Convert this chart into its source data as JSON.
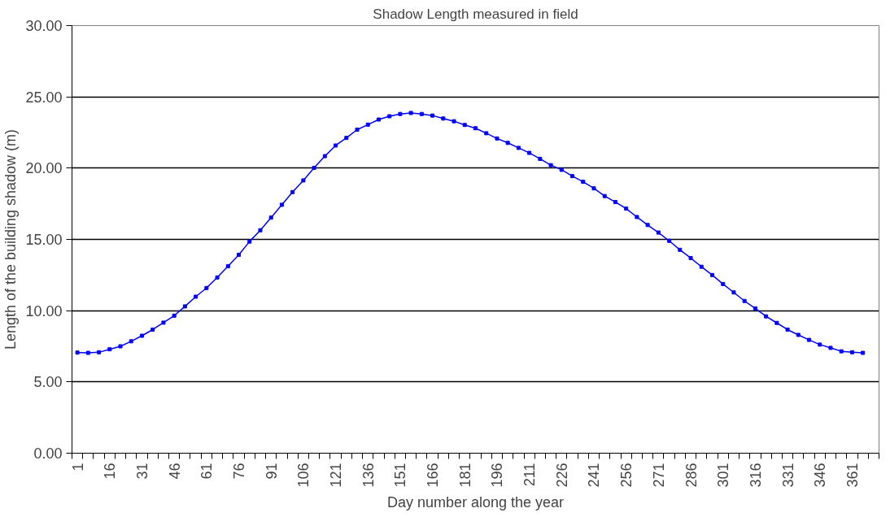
{
  "chart_data": {
    "type": "line",
    "title": "Shadow Length measured in field",
    "xlabel": "Day number along the year",
    "ylabel": "Length of the building shadow (m)",
    "categories": [
      "1",
      null,
      null,
      "16",
      null,
      null,
      "31",
      null,
      null,
      "46",
      null,
      null,
      "61",
      null,
      null,
      "76",
      null,
      null,
      "91",
      null,
      null,
      "106",
      null,
      null,
      "121",
      null,
      null,
      "136",
      null,
      null,
      "151",
      null,
      null,
      "166",
      null,
      null,
      "181",
      null,
      null,
      "196",
      null,
      null,
      "211",
      null,
      null,
      "226",
      null,
      null,
      "241",
      null,
      null,
      "256",
      null,
      null,
      "271",
      null,
      null,
      "286",
      null,
      null,
      "301",
      null,
      null,
      "316",
      null,
      null,
      "331",
      null,
      null,
      "346",
      null,
      null,
      "361",
      null,
      null
    ],
    "series": [
      {
        "color": "#0000ff",
        "values": [
          7.06,
          7.04,
          7.08,
          7.29,
          7.5,
          7.85,
          8.24,
          8.67,
          9.16,
          9.65,
          10.3,
          10.98,
          11.59,
          12.33,
          13.12,
          13.92,
          14.85,
          15.64,
          16.53,
          17.43,
          18.32,
          19.14,
          20.02,
          20.84,
          21.59,
          22.12,
          22.7,
          23.05,
          23.41,
          23.64,
          23.8,
          23.87,
          23.8,
          23.69,
          23.48,
          23.29,
          23.03,
          22.8,
          22.45,
          22.08,
          21.77,
          21.42,
          21.07,
          20.65,
          20.21,
          19.88,
          19.44,
          19.04,
          18.58,
          18.04,
          17.62,
          17.16,
          16.57,
          16.01,
          15.48,
          14.9,
          14.27,
          13.69,
          13.08,
          12.5,
          11.87,
          11.28,
          10.68,
          10.16,
          9.6,
          9.14,
          8.67,
          8.3,
          7.95,
          7.62,
          7.39,
          7.15,
          7.08,
          7.04,
          null
        ]
      }
    ],
    "ylim": [
      0,
      30
    ],
    "yticks": [
      {
        "value": 0,
        "label": "0.00"
      },
      {
        "value": 5,
        "label": "5.00"
      },
      {
        "value": 10,
        "label": "10.00"
      },
      {
        "value": 15,
        "label": "15.00"
      },
      {
        "value": 20,
        "label": "20.00"
      },
      {
        "value": 25,
        "label": "25.00"
      },
      {
        "value": 30,
        "label": "30.00"
      }
    ],
    "grid": "y",
    "marker": "square",
    "line_style": "solid"
  }
}
